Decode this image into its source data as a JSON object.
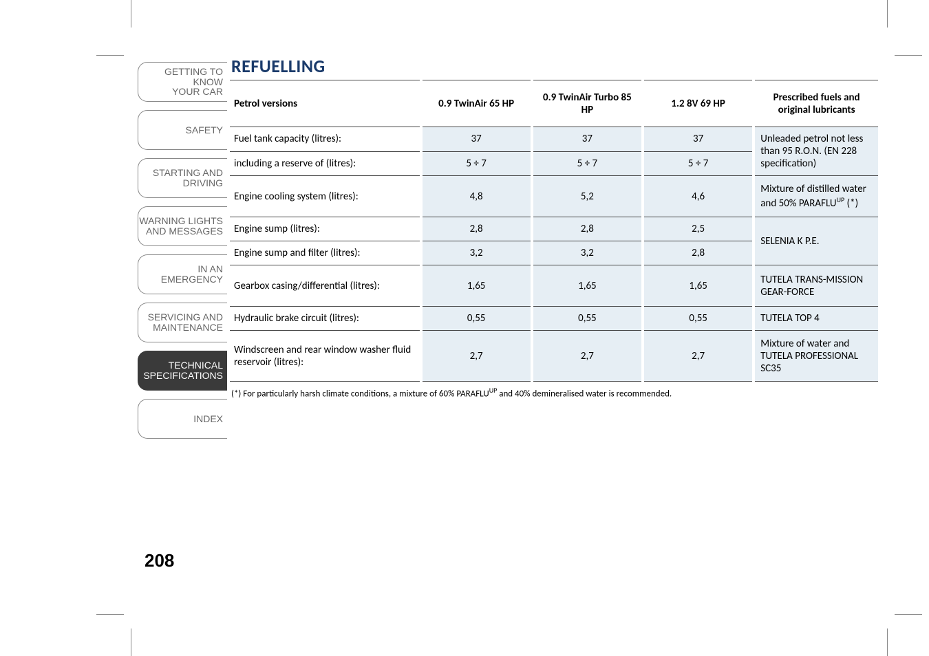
{
  "title": "REFUELLING",
  "page_number": "208",
  "colors": {
    "title": "#1a3a6a",
    "cell_bg": "#e6eef4",
    "tab_active_bg": "#3a3a3a",
    "tab_inactive_fg": "#666666"
  },
  "sidebar": [
    {
      "lines": [
        "GETTING TO KNOW",
        "YOUR CAR"
      ],
      "active": false
    },
    {
      "lines": [
        "SAFETY"
      ],
      "active": false
    },
    {
      "lines": [
        "STARTING AND",
        "DRIVING"
      ],
      "active": false
    },
    {
      "lines": [
        "WARNING LIGHTS",
        "AND MESSAGES"
      ],
      "active": false
    },
    {
      "lines": [
        "IN AN EMERGENCY"
      ],
      "active": false
    },
    {
      "lines": [
        "SERVICING AND",
        "MAINTENANCE"
      ],
      "active": false
    },
    {
      "lines": [
        "TECHNICAL",
        "SPECIFICATIONS"
      ],
      "active": true
    },
    {
      "lines": [
        "INDEX"
      ],
      "active": false
    }
  ],
  "headers": {
    "c0": "Petrol versions",
    "c1": "0.9 TwinAir 65 HP",
    "c2": "0.9 TwinAir Turbo 85 HP",
    "c3": "1.2 8V 69 HP",
    "c4": "Prescribed fuels and original lubricants"
  },
  "rows": {
    "r0": {
      "label": "Fuel tank capacity (litres):",
      "v1": "37",
      "v2": "37",
      "v3": "37"
    },
    "r1": {
      "label": "including a reserve of (litres):",
      "v1": "5 ÷ 7",
      "v2": "5 ÷ 7",
      "v3": "5 ÷ 7"
    },
    "fuel01": "Unleaded petrol not less than 95 R.O.N. (EN 228 specification)",
    "r2": {
      "label": "Engine cooling system (litres):",
      "v1": "4,8",
      "v2": "5,2",
      "v3": "4,6",
      "fuel_pre": "Mixture of distilled water and 50% PARAFLU",
      "fuel_sup": "UP",
      "fuel_post": " (*)"
    },
    "r3": {
      "label": "Engine sump (litres):",
      "v1": "2,8",
      "v2": "2,8",
      "v3": "2,5"
    },
    "r4": {
      "label": "Engine sump and filter (litres):",
      "v1": "3,2",
      "v2": "3,2",
      "v3": "2,8"
    },
    "fuel34": "SELENIA K P.E.",
    "r5": {
      "label": "Gearbox casing/differential (litres):",
      "v1": "1,65",
      "v2": "1,65",
      "v3": "1,65",
      "fuel": "TUTELA TRANS-MISSION GEAR-FORCE"
    },
    "r6": {
      "label": "Hydraulic brake circuit (litres):",
      "v1": "0,55",
      "v2": "0,55",
      "v3": "0,55",
      "fuel": "TUTELA TOP 4"
    },
    "r7": {
      "label": "Windscreen and rear window washer fluid reservoir (litres):",
      "v1": "2,7",
      "v2": "2,7",
      "v3": "2,7",
      "fuel": "Mixture of water and TUTELA PROFESSIONAL SC35"
    }
  },
  "footnote": {
    "pre": "(*) For particularly harsh climate conditions, a mixture of 60% PARAFLU",
    "sup": "UP",
    "post": " and 40% demineralised water is recommended."
  }
}
